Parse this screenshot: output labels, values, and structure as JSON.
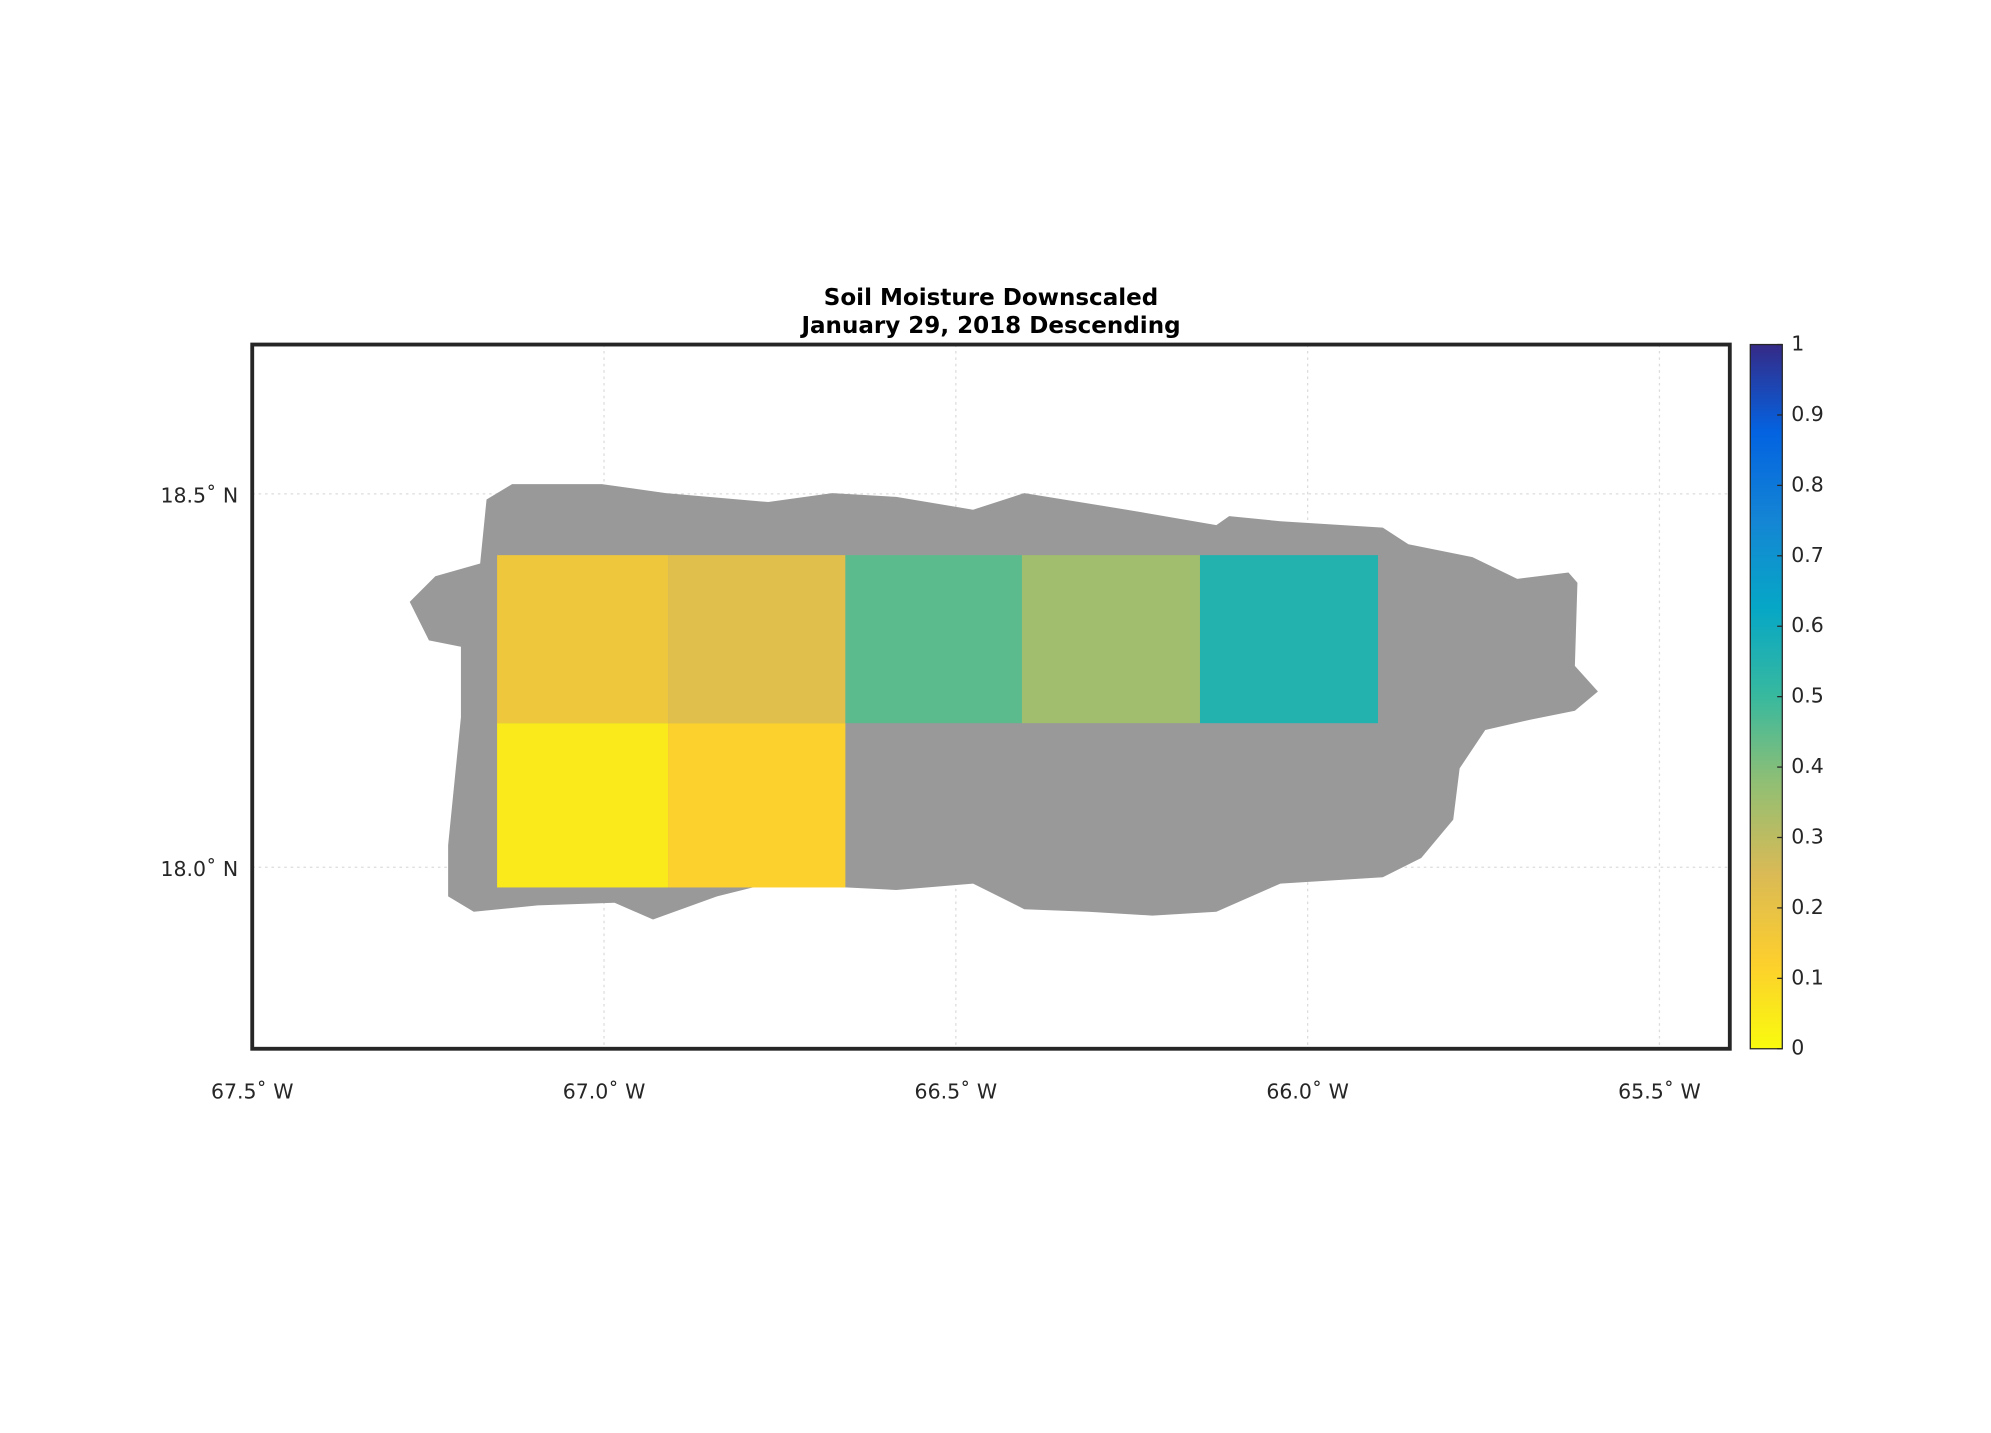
{
  "chart_data": {
    "type": "map",
    "title": "Soil Moisture Downscaled",
    "subtitle": "January 29, 2018 Descending",
    "xlim": [
      -67.5,
      -65.4
    ],
    "ylim": [
      17.757,
      18.7
    ],
    "xticks": [
      {
        "value": -67.5,
        "label": "67.5˚ W"
      },
      {
        "value": -67.0,
        "label": "67.0˚ W"
      },
      {
        "value": -66.5,
        "label": "66.5˚ W"
      },
      {
        "value": -66.0,
        "label": "66.0˚ W"
      },
      {
        "value": -65.5,
        "label": "65.5˚ W"
      }
    ],
    "yticks": [
      {
        "value": 18.0,
        "label": "18.0˚ N"
      },
      {
        "value": 18.5,
        "label": "18.5˚ N"
      }
    ],
    "grid": true,
    "colormap": "parula",
    "colormap_reversed": true,
    "clim": [
      0,
      1
    ],
    "cticks": [
      0,
      0.1,
      0.2,
      0.3,
      0.4,
      0.5,
      0.6,
      0.7,
      0.8,
      0.9,
      1
    ],
    "tiles": [
      {
        "lon": [
          -67.152,
          -66.909
        ],
        "lat": [
          18.193,
          18.418
        ],
        "value": 0.17
      },
      {
        "lon": [
          -66.909,
          -66.657
        ],
        "lat": [
          18.193,
          18.418
        ],
        "value": 0.22
      },
      {
        "lon": [
          -66.657,
          -66.406
        ],
        "lat": [
          18.193,
          18.418
        ],
        "value": 0.45
      },
      {
        "lon": [
          -66.406,
          -66.153
        ],
        "lat": [
          18.193,
          18.418
        ],
        "value": 0.35
      },
      {
        "lon": [
          -66.153,
          -65.9
        ],
        "lat": [
          18.193,
          18.418
        ],
        "value": 0.55
      },
      {
        "lon": [
          -67.152,
          -66.909
        ],
        "lat": [
          17.973,
          18.193
        ],
        "value": 0.05
      },
      {
        "lon": [
          -66.909,
          -66.657
        ],
        "lat": [
          17.973,
          18.193
        ],
        "value": 0.12
      }
    ]
  }
}
